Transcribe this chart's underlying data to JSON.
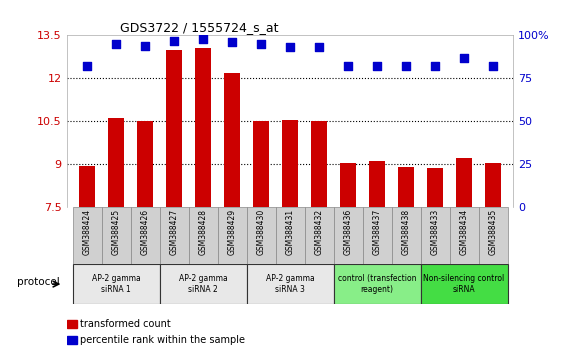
{
  "title": "GDS3722 / 1555724_s_at",
  "samples": [
    "GSM388424",
    "GSM388425",
    "GSM388426",
    "GSM388427",
    "GSM388428",
    "GSM388429",
    "GSM388430",
    "GSM388431",
    "GSM388432",
    "GSM388436",
    "GSM388437",
    "GSM388438",
    "GSM388433",
    "GSM388434",
    "GSM388435"
  ],
  "transformed_count": [
    8.95,
    10.6,
    10.5,
    13.0,
    13.05,
    12.2,
    10.5,
    10.55,
    10.5,
    9.05,
    9.1,
    8.9,
    8.85,
    9.2,
    9.05
  ],
  "percentile_rank": [
    82,
    95,
    94,
    97,
    98,
    96,
    95,
    93,
    93,
    82,
    82,
    82,
    82,
    87,
    82
  ],
  "groups": [
    {
      "label": "AP-2 gamma\nsiRNA 1",
      "indices": [
        0,
        1,
        2
      ],
      "color": "#e8e8e8"
    },
    {
      "label": "AP-2 gamma\nsiRNA 2",
      "indices": [
        3,
        4,
        5
      ],
      "color": "#e8e8e8"
    },
    {
      "label": "AP-2 gamma\nsiRNA 3",
      "indices": [
        6,
        7,
        8
      ],
      "color": "#e8e8e8"
    },
    {
      "label": "control (transfection\nreagent)",
      "indices": [
        9,
        10,
        11
      ],
      "color": "#88ee88"
    },
    {
      "label": "Non-silencing control\nsiRNA",
      "indices": [
        12,
        13,
        14
      ],
      "color": "#44dd44"
    }
  ],
  "bar_color": "#cc0000",
  "dot_color": "#0000cc",
  "ylim_left": [
    7.5,
    13.5
  ],
  "ylim_right": [
    0,
    100
  ],
  "yticks_left": [
    7.5,
    9.0,
    10.5,
    12.0,
    13.5
  ],
  "yticks_right": [
    0,
    25,
    50,
    75,
    100
  ],
  "ytick_labels_left": [
    "7.5",
    "9",
    "10.5",
    "12",
    "13.5"
  ],
  "ytick_labels_right": [
    "0",
    "25",
    "50",
    "75",
    "100%"
  ],
  "hlines": [
    9.0,
    10.5,
    12.0
  ],
  "bar_width": 0.55,
  "dot_size": 35,
  "legend_bar_label": "transformed count",
  "legend_dot_label": "percentile rank within the sample",
  "protocol_label": "protocol",
  "tick_label_color_left": "#cc0000",
  "tick_label_color_right": "#0000cc",
  "sample_box_color": "#d0d0d0",
  "group_border_color": "#333333"
}
